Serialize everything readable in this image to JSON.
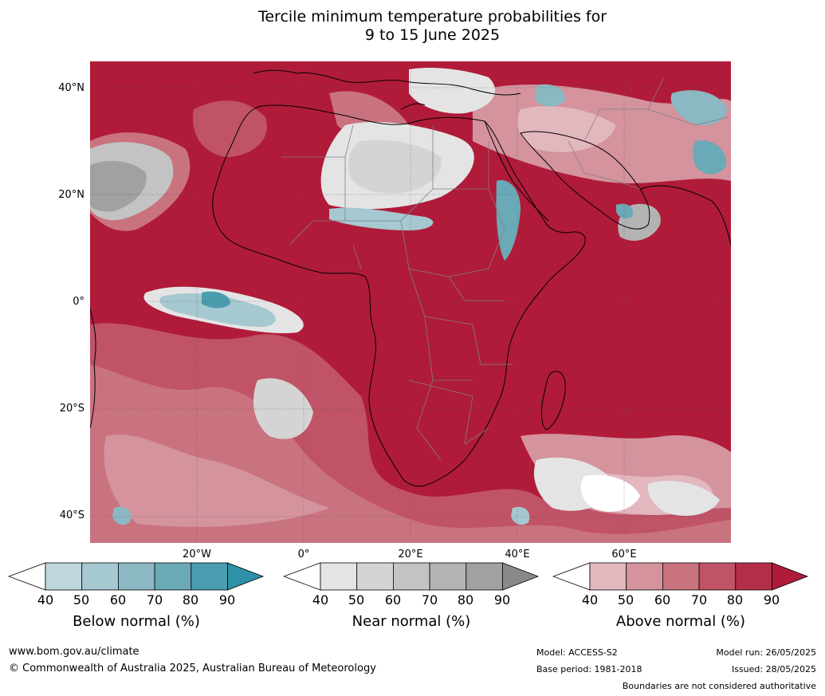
{
  "title": {
    "line1": "Tercile minimum temperature probabilities for",
    "line2": "9 to 15 June 2025"
  },
  "map": {
    "lat_labels": [
      "40°N",
      "20°N",
      "0°",
      "20°S",
      "40°S"
    ],
    "lon_labels": [
      "20°W",
      "0°",
      "20°E",
      "40°E",
      "60°E"
    ],
    "colors": {
      "above": [
        "#e2b7be",
        "#d4939d",
        "#c9737f",
        "#c05366",
        "#b52e48",
        "#b01b3a"
      ],
      "near": [
        "#e4e4e4",
        "#d4d4d4",
        "#c3c3c3",
        "#b3b3b3",
        "#a1a1a1",
        "#8a8a8a"
      ],
      "below": [
        "#bfd6de",
        "#a6c8d0",
        "#8bb8c3",
        "#6aaab6",
        "#4a9dae",
        "#2e91a8"
      ],
      "land_border": "#000000",
      "country_border": "#808080"
    }
  },
  "legends": [
    {
      "title": "Below normal (%)",
      "ticks": [
        "40",
        "50",
        "60",
        "70",
        "80",
        "90"
      ],
      "colors": [
        "#ffffff",
        "#bfd6de",
        "#a6c8d0",
        "#8bb8c3",
        "#6aaab6",
        "#4a9dae",
        "#2e91a8"
      ]
    },
    {
      "title": "Near normal (%)",
      "ticks": [
        "40",
        "50",
        "60",
        "70",
        "80",
        "90"
      ],
      "colors": [
        "#ffffff",
        "#e4e4e4",
        "#d4d4d4",
        "#c3c3c3",
        "#b3b3b3",
        "#a1a1a1",
        "#8a8a8a"
      ]
    },
    {
      "title": "Above normal (%)",
      "ticks": [
        "40",
        "50",
        "60",
        "70",
        "80",
        "90"
      ],
      "colors": [
        "#ffffff",
        "#e2b7be",
        "#d4939d",
        "#c9737f",
        "#c05366",
        "#b52e48",
        "#b01b3a"
      ]
    }
  ],
  "footer": {
    "website": "www.bom.gov.au/climate",
    "copyright": "© Commonwealth of Australia 2025, Australian Bureau of Meteorology",
    "model": "Model: ACCESS-S2",
    "base_period": "Base period: 1981-2018",
    "model_run": "Model run: 26/05/2025",
    "issued": "Issued: 28/05/2025",
    "disclaimer": "Boundaries are not considered authoritative"
  }
}
